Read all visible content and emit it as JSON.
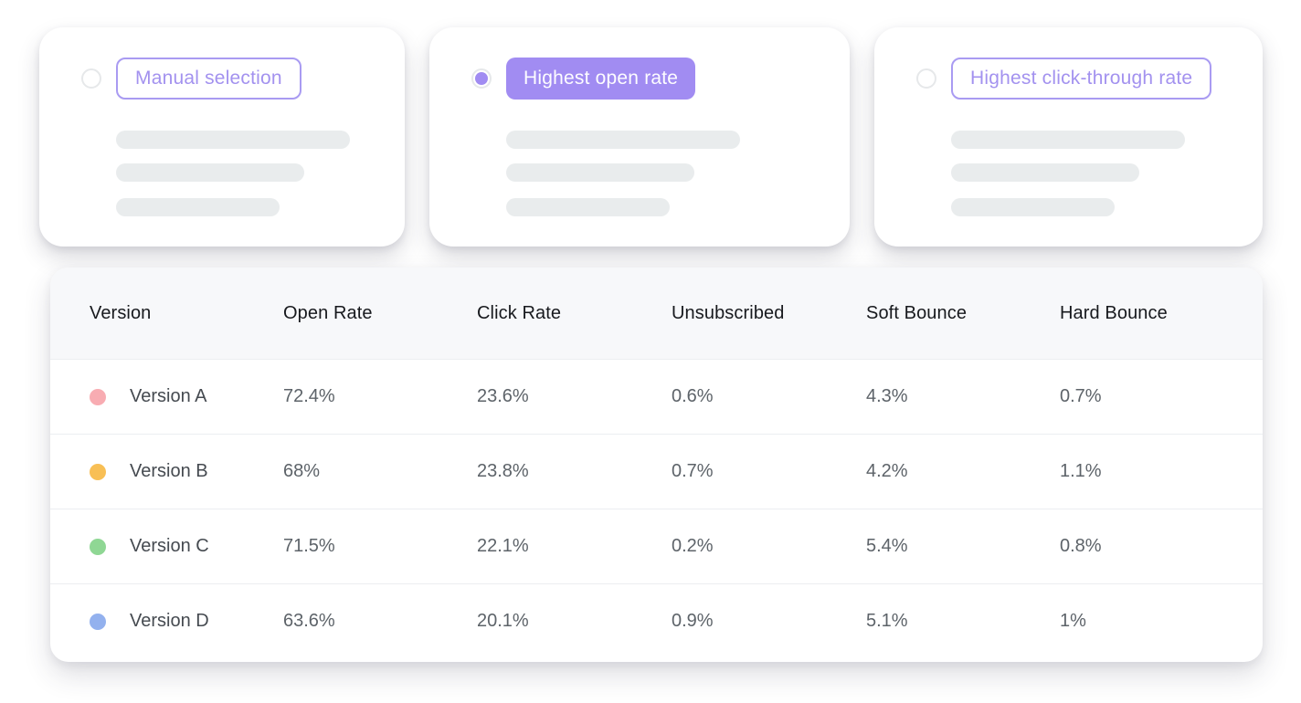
{
  "winner_selection": {
    "accent_color": "#a18cf2",
    "options": [
      {
        "label": "Manual selection",
        "selected": false,
        "variant": "outline"
      },
      {
        "label": "Highest open rate",
        "selected": true,
        "variant": "filled"
      },
      {
        "label": "Highest click-through rate",
        "selected": false,
        "variant": "outline"
      }
    ]
  },
  "results_table": {
    "columns": [
      "Version",
      "Open Rate",
      "Click Rate",
      "Unsubscribed",
      "Soft Bounce",
      "Hard Bounce"
    ],
    "rows": [
      {
        "version": "Version A",
        "dot_color": "#f8acb2",
        "values": [
          "72.4%",
          "23.6%",
          "0.6%",
          "4.3%",
          "0.7%"
        ]
      },
      {
        "version": "Version B",
        "dot_color": "#f8bf55",
        "values": [
          "68%",
          "23.8%",
          "0.7%",
          "4.2%",
          "1.1%"
        ]
      },
      {
        "version": "Version C",
        "dot_color": "#8fd794",
        "values": [
          "71.5%",
          "22.1%",
          "0.2%",
          "5.4%",
          "0.8%"
        ]
      },
      {
        "version": "Version D",
        "dot_color": "#93b1ee",
        "values": [
          "63.6%",
          "20.1%",
          "0.9%",
          "5.1%",
          "1%"
        ]
      }
    ]
  }
}
